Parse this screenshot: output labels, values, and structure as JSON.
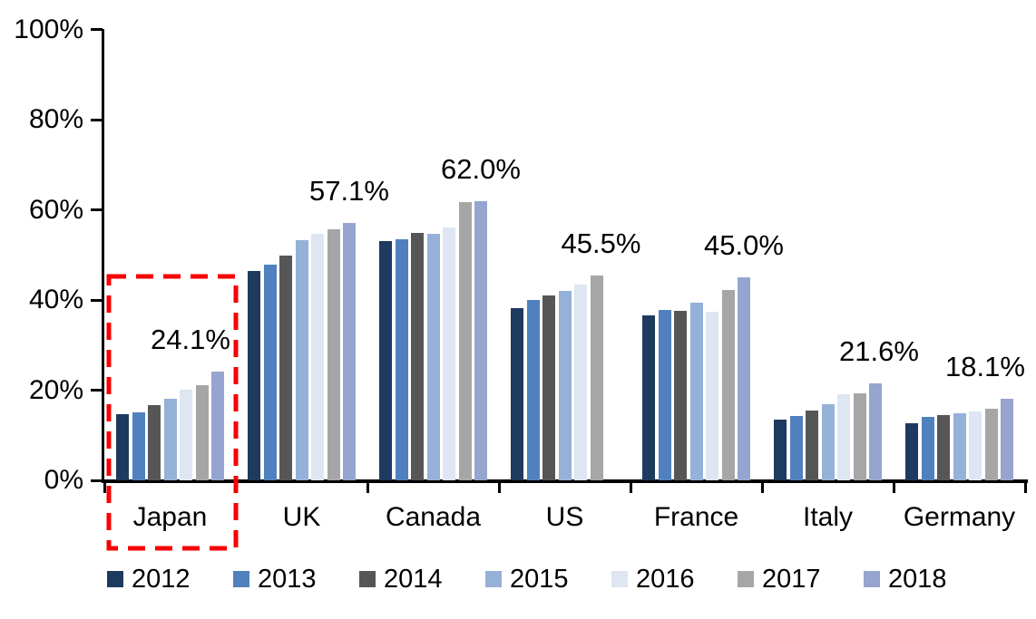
{
  "chart_data": {
    "type": "bar",
    "title": "",
    "subtitle": "",
    "categories": [
      "Japan",
      "UK",
      "Canada",
      "US",
      "France",
      "Italy",
      "Germany"
    ],
    "series": [
      {
        "name": "2012",
        "color": "#1E3A5F",
        "values": [
          14.7,
          46.4,
          53.0,
          38.2,
          36.6,
          13.4,
          12.7
        ]
      },
      {
        "name": "2013",
        "color": "#5081BE",
        "values": [
          15.1,
          47.8,
          53.4,
          39.9,
          37.8,
          14.2,
          14.1
        ]
      },
      {
        "name": "2014",
        "color": "#565656",
        "values": [
          16.6,
          49.9,
          54.8,
          41.0,
          37.6,
          15.4,
          14.4
        ]
      },
      {
        "name": "2015",
        "color": "#95B1D8",
        "values": [
          18.1,
          53.2,
          54.6,
          42.0,
          39.3,
          16.9,
          14.8
        ]
      },
      {
        "name": "2016",
        "color": "#DDE6F2",
        "values": [
          20.1,
          54.7,
          56.1,
          43.5,
          37.4,
          19.0,
          15.3
        ]
      },
      {
        "name": "2017",
        "color": "#A6A6A6",
        "values": [
          21.2,
          55.7,
          61.7,
          45.5,
          42.3,
          19.2,
          15.9
        ]
      },
      {
        "name": "2018",
        "color": "#96A5CF",
        "values": [
          24.1,
          57.1,
          62.0,
          null,
          45.0,
          21.6,
          18.1
        ]
      }
    ],
    "y_axis": {
      "min": 0,
      "max": 100,
      "tick_step": 20,
      "tick_labels": [
        "0%",
        "20%",
        "40%",
        "60%",
        "80%",
        "100%"
      ]
    },
    "x_axis": {
      "tick_labels": [
        "Japan",
        "UK",
        "Canada",
        "US",
        "France",
        "Italy",
        "Germany"
      ]
    },
    "annotations": [
      {
        "category": "Japan",
        "text": "24.1%",
        "dx": -30
      },
      {
        "category": "UK",
        "text": "57.1%",
        "dx": 0
      },
      {
        "category": "Canada",
        "text": "62.0%",
        "dx": 0
      },
      {
        "category": "US",
        "text": "45.5%",
        "dx": 5
      },
      {
        "category": "France",
        "text": "45.0%",
        "dx": 0
      },
      {
        "category": "Italy",
        "text": "21.6%",
        "dx": 4
      },
      {
        "category": "Germany",
        "text": "18.1%",
        "dx": -24
      }
    ],
    "highlight": {
      "category": "Japan",
      "shape": "dashed-rectangle",
      "color": "#F80000"
    },
    "legend": {
      "position": "bottom",
      "entries": [
        "2012",
        "2013",
        "2014",
        "2015",
        "2016",
        "2017",
        "2018"
      ]
    },
    "grid": "off",
    "axis_color": "#000000"
  }
}
